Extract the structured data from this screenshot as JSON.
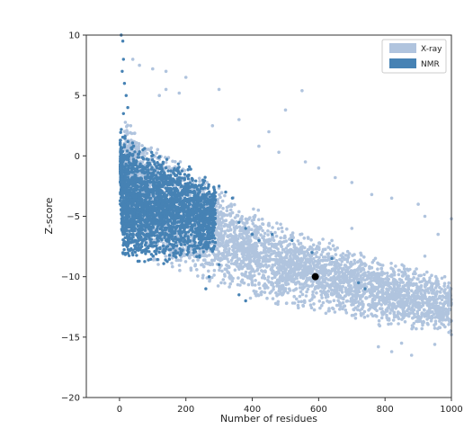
{
  "chart_data": {
    "type": "scatter",
    "xlabel": "Number of residues",
    "ylabel": "Z-score",
    "xlim": [
      -100,
      1000
    ],
    "ylim": [
      -20,
      10
    ],
    "xticks": [
      0,
      200,
      400,
      600,
      800,
      1000
    ],
    "yticks": [
      10,
      5,
      0,
      -5,
      -10,
      -15,
      -20
    ],
    "xtick_labels": [
      "0",
      "200",
      "400",
      "600",
      "800",
      "1000"
    ],
    "ytick_labels": [
      "10",
      "5",
      "0",
      "−5",
      "−10",
      "−15",
      "−20"
    ],
    "grid": false,
    "legend_position": "top-right",
    "legend": [
      {
        "label": "X-ray",
        "color": "#b0c4de"
      },
      {
        "label": "NMR",
        "color": "#4682b4"
      }
    ],
    "series": [
      {
        "name": "X-ray",
        "color": "#b0c4de",
        "lower_trend": [
          [
            20,
            -6.5
          ],
          [
            100,
            -9
          ],
          [
            200,
            -10
          ],
          [
            300,
            -11
          ],
          [
            400,
            -12
          ],
          [
            500,
            -12.6
          ],
          [
            600,
            -13
          ],
          [
            700,
            -13.6
          ],
          [
            800,
            -14.3
          ],
          [
            900,
            -14.8
          ],
          [
            1000,
            -15
          ]
        ],
        "upper_trend": [
          [
            0,
            4
          ],
          [
            20,
            3.5
          ],
          [
            50,
            2
          ],
          [
            100,
            1
          ],
          [
            200,
            -0.5
          ],
          [
            300,
            -2.5
          ],
          [
            400,
            -4.2
          ],
          [
            500,
            -5.5
          ],
          [
            600,
            -6.7
          ],
          [
            700,
            -7.6
          ],
          [
            800,
            -8.6
          ],
          [
            900,
            -9
          ],
          [
            1000,
            -9.5
          ]
        ],
        "outliers": [
          [
            40,
            8
          ],
          [
            60,
            7.5
          ],
          [
            100,
            7.2
          ],
          [
            140,
            7
          ],
          [
            200,
            6.5
          ],
          [
            140,
            5.5
          ],
          [
            180,
            5.2
          ],
          [
            120,
            5
          ],
          [
            300,
            5.5
          ],
          [
            360,
            3
          ],
          [
            280,
            2.5
          ],
          [
            450,
            2
          ],
          [
            500,
            3.8
          ],
          [
            550,
            5.4
          ],
          [
            420,
            0.8
          ],
          [
            480,
            0.3
          ],
          [
            560,
            -0.5
          ],
          [
            600,
            -1
          ],
          [
            650,
            -1.8
          ],
          [
            700,
            -2.2
          ],
          [
            760,
            -3.2
          ],
          [
            820,
            -3.5
          ],
          [
            900,
            -4
          ],
          [
            920,
            -5
          ],
          [
            960,
            -6.5
          ],
          [
            1000,
            -5.2
          ],
          [
            780,
            -15.8
          ],
          [
            820,
            -16.2
          ],
          [
            880,
            -16.5
          ],
          [
            950,
            -15.6
          ],
          [
            1000,
            -14.8
          ],
          [
            850,
            -15.5
          ],
          [
            990,
            -13
          ],
          [
            930,
            -11
          ],
          [
            980,
            -10
          ],
          [
            860,
            -9.6
          ],
          [
            920,
            -8.3
          ],
          [
            640,
            -7
          ],
          [
            700,
            -6
          ]
        ]
      },
      {
        "name": "NMR",
        "color": "#4682b4",
        "lower_trend": [
          [
            2,
            -4
          ],
          [
            10,
            -8.5
          ],
          [
            30,
            -9
          ],
          [
            60,
            -9.2
          ],
          [
            100,
            -9
          ],
          [
            150,
            -9
          ],
          [
            200,
            -8.5
          ],
          [
            250,
            -8.5
          ],
          [
            280,
            -8.3
          ]
        ],
        "upper_trend": [
          [
            2,
            2.5
          ],
          [
            10,
            2
          ],
          [
            30,
            1.5
          ],
          [
            60,
            1
          ],
          [
            100,
            0.5
          ],
          [
            150,
            0
          ],
          [
            200,
            -0.7
          ],
          [
            250,
            -1.5
          ],
          [
            280,
            -2
          ]
        ],
        "outliers": [
          [
            5,
            10
          ],
          [
            10,
            9.5
          ],
          [
            12,
            8
          ],
          [
            8,
            7
          ],
          [
            15,
            6
          ],
          [
            20,
            5
          ],
          [
            25,
            4
          ],
          [
            12,
            3.5
          ],
          [
            300,
            -2.5
          ],
          [
            320,
            -3
          ],
          [
            340,
            -3.5
          ],
          [
            360,
            -5.5
          ],
          [
            380,
            -6
          ],
          [
            400,
            -6.5
          ],
          [
            420,
            -7
          ],
          [
            460,
            -6.5
          ],
          [
            520,
            -7
          ],
          [
            580,
            -8
          ],
          [
            640,
            -8.5
          ],
          [
            720,
            -10.5
          ],
          [
            740,
            -11
          ],
          [
            360,
            -11.5
          ],
          [
            380,
            -12
          ],
          [
            300,
            -9
          ],
          [
            270,
            -10
          ],
          [
            260,
            -11
          ]
        ]
      }
    ],
    "highlight_point": {
      "x": 590,
      "y": -10,
      "color": "#000000"
    }
  }
}
